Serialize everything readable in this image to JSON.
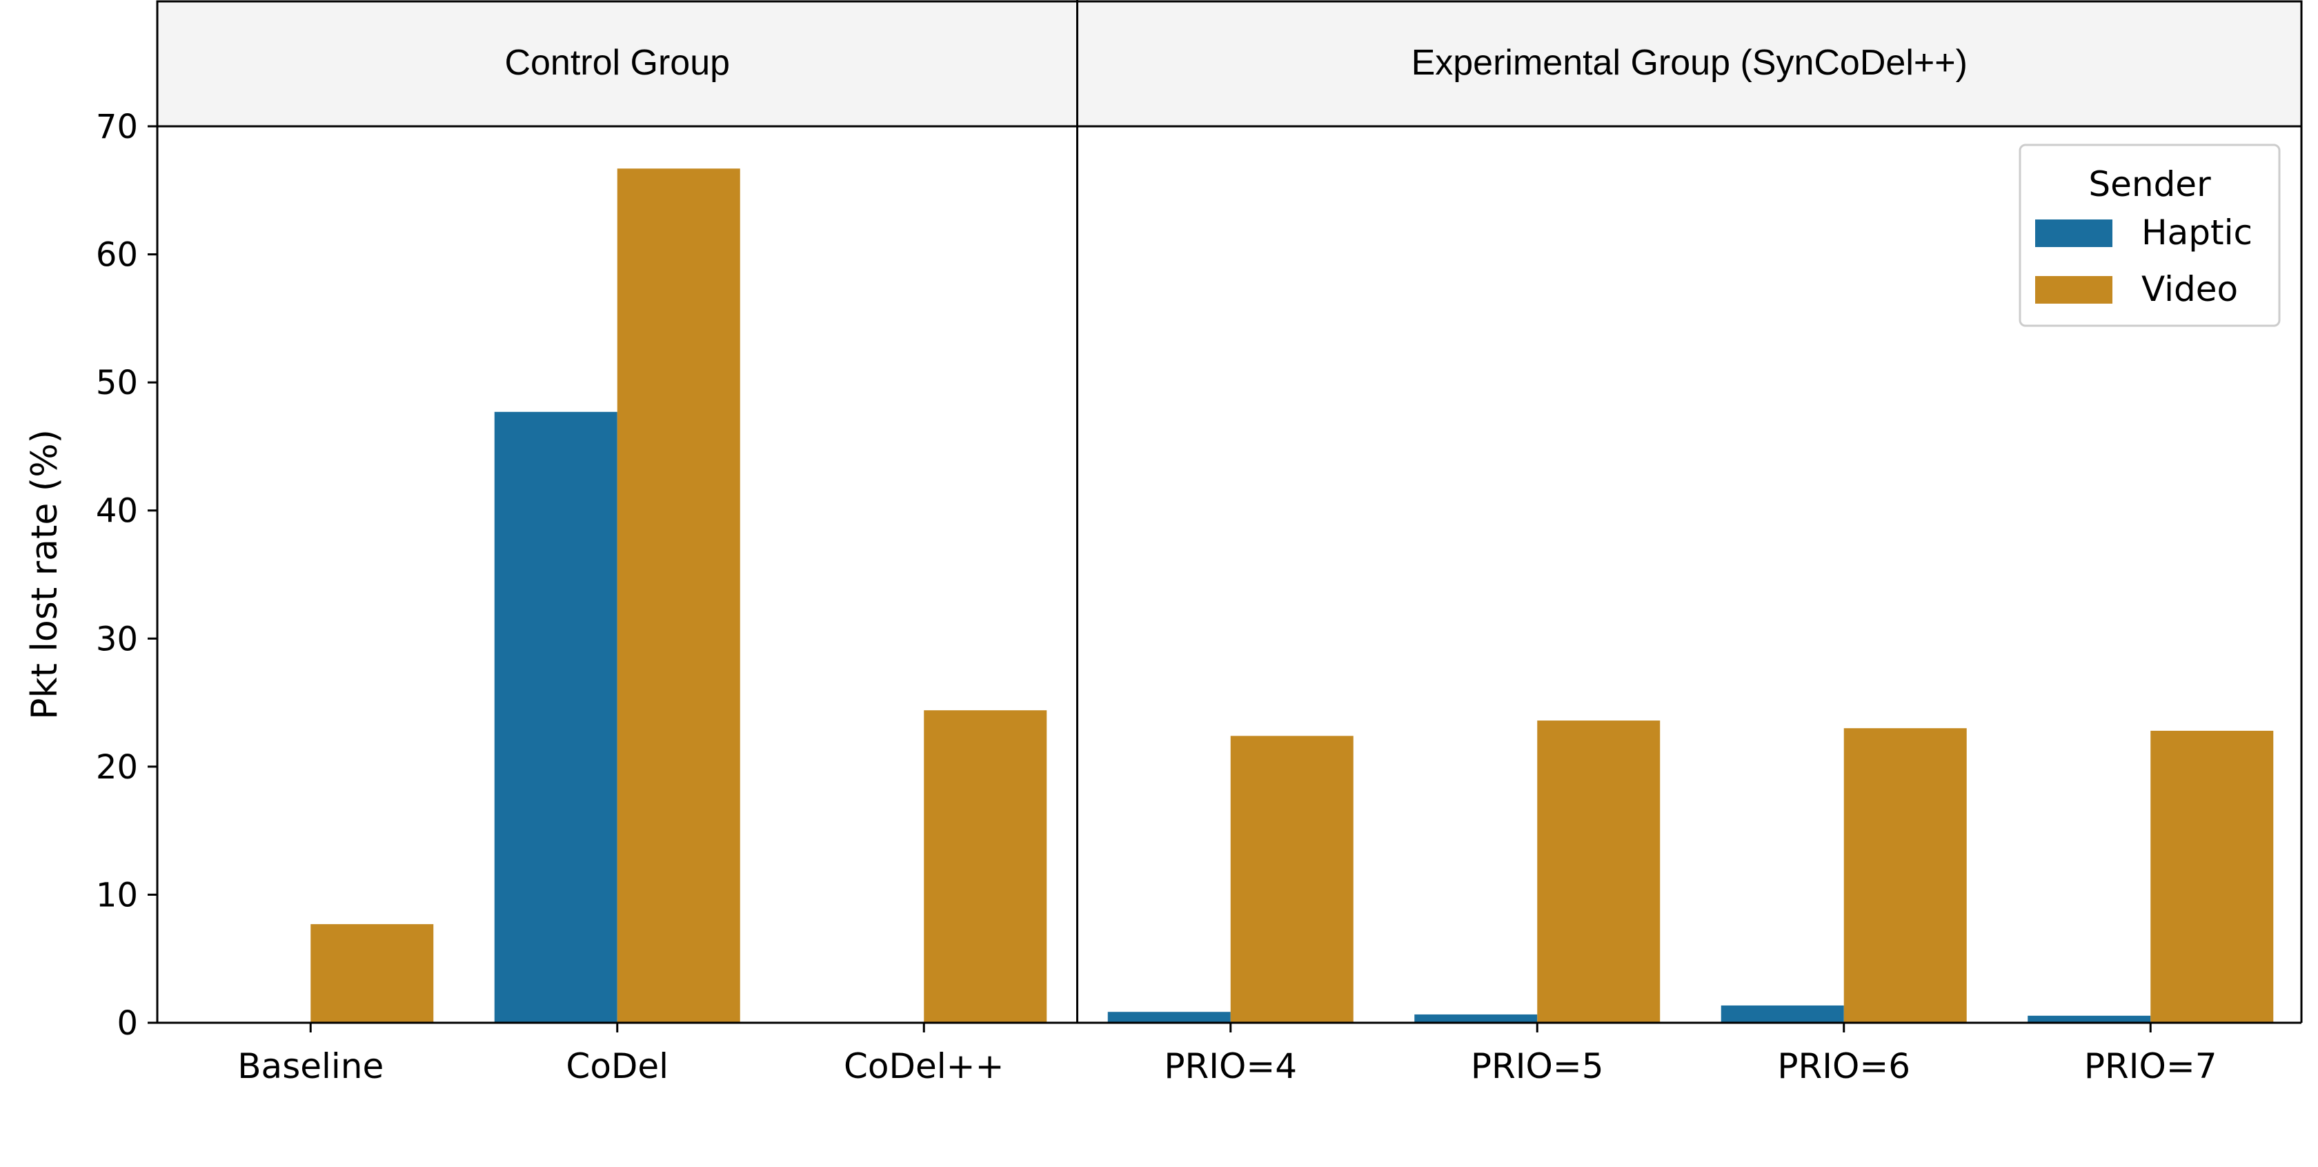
{
  "chart_data": {
    "type": "bar",
    "ylabel": "Pkt lost rate (%)",
    "xlabel": "",
    "ylim": [
      0,
      70
    ],
    "yticks": [
      0,
      10,
      20,
      30,
      40,
      50,
      60,
      70
    ],
    "grid": false,
    "groups": [
      {
        "title": "Control Group",
        "categories": [
          "Baseline",
          "CoDel",
          "CoDel++"
        ]
      },
      {
        "title": "Experimental Group (SynCoDel++)",
        "categories": [
          "PRIO=4",
          "PRIO=5",
          "PRIO=6",
          "PRIO=7"
        ]
      }
    ],
    "legend": {
      "title": "Sender",
      "position": "top-right"
    },
    "series": [
      {
        "name": "Haptic",
        "color": "#1a6e9e",
        "values": [
          0,
          47.7,
          0,
          0.85,
          0.65,
          1.35,
          0.55
        ]
      },
      {
        "name": "Video",
        "color": "#c48921",
        "values": [
          7.7,
          66.7,
          24.4,
          22.4,
          23.6,
          23.0,
          22.8
        ]
      }
    ]
  }
}
